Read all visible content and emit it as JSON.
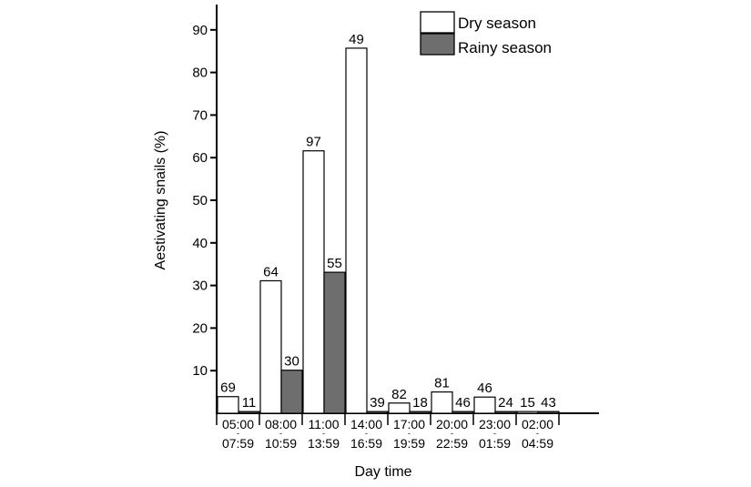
{
  "chart_data": {
    "type": "bar",
    "title": "",
    "xlabel": "Day time",
    "ylabel": "Aestivating snails  (%)",
    "ylim": [
      0,
      96
    ],
    "yticks": [
      10,
      20,
      30,
      40,
      50,
      60,
      70,
      80,
      90
    ],
    "grid": false,
    "legend_position": "top-right",
    "categories": [
      {
        "start": "05:00",
        "end": "07:59"
      },
      {
        "start": "08:00",
        "end": "10:59"
      },
      {
        "start": "11:00",
        "end": "13:59"
      },
      {
        "start": "14:00",
        "end": "16:59"
      },
      {
        "start": "17:00",
        "end": "19:59"
      },
      {
        "start": "20:00",
        "end": "22:59"
      },
      {
        "start": "23:00",
        "end": "01:59"
      },
      {
        "start": "02:00",
        "end": "04:59"
      }
    ],
    "category_separator": "-",
    "series": [
      {
        "name": "Dry season",
        "color": "#ffffff",
        "values": [
          3.9,
          31.1,
          61.6,
          85.7,
          2.4,
          5.0,
          3.8,
          0.4
        ],
        "labels": [
          "69",
          "64",
          "97",
          "49",
          "82",
          "81",
          "46",
          "15"
        ]
      },
      {
        "name": "Rainy season",
        "color": "#6e6e6e",
        "values": [
          0.4,
          10.1,
          33.1,
          0.4,
          0.4,
          0.4,
          0.4,
          0.4
        ],
        "labels": [
          "11",
          "30",
          "55",
          "39",
          "18",
          "46",
          "24",
          "43"
        ]
      }
    ]
  }
}
